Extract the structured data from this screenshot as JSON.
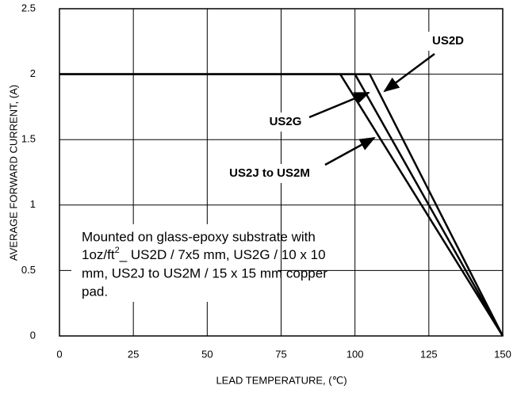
{
  "chart_data": {
    "type": "line",
    "xlabel": "LEAD TEMPERATURE, (℃)",
    "ylabel": "AVERAGE FORWARD CURRENT, (A)",
    "series": [
      {
        "name": "US2D",
        "color": "#000000",
        "x": [
          0,
          105,
          150
        ],
        "values": [
          2,
          2,
          0
        ]
      },
      {
        "name": "US2G",
        "color": "#000000",
        "x": [
          0,
          100,
          150
        ],
        "values": [
          2,
          2,
          0
        ]
      },
      {
        "name": "US2J to US2M",
        "color": "#000000",
        "x": [
          0,
          95,
          150
        ],
        "values": [
          2,
          2,
          0
        ]
      }
    ],
    "annotation": [
      {
        "text": "Mounted on glass-epoxy substrate with"
      },
      {
        "text": "1oz/ft",
        "sup": "2",
        "after": "_ US2D / 7x5 mm, US2G / 10 x 10"
      },
      {
        "text": "mm, US2J to US2M / 15 x 15 mm copper"
      },
      {
        "text": "pad."
      }
    ],
    "xlim": [
      0,
      150
    ],
    "xticks": [
      0,
      25,
      50,
      75,
      100,
      125,
      150
    ],
    "ylim": [
      0,
      2.5
    ],
    "yticks": [
      0,
      0.5,
      1,
      1.5,
      2,
      2.5
    ],
    "grid": true
  }
}
